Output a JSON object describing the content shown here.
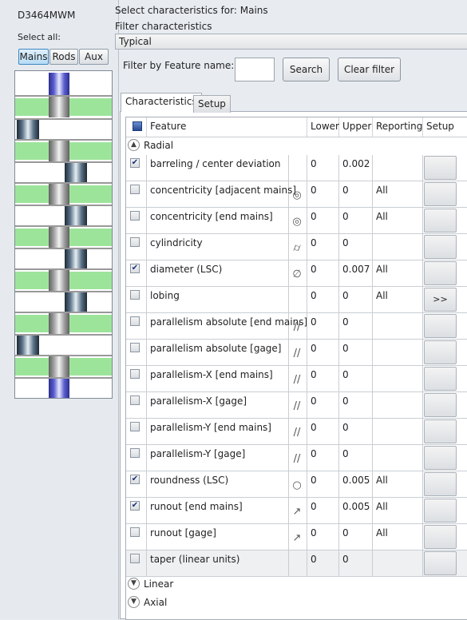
{
  "part_id": "D3464MWM",
  "select_all_label": "Select all:",
  "part_tabs": [
    {
      "label": "Mains",
      "active": true
    },
    {
      "label": "Rods",
      "active": false
    },
    {
      "label": "Aux",
      "active": false
    }
  ],
  "header": {
    "select_for": "Select characteristics for: Mains",
    "filter_chars": "Filter characteristics",
    "filter_selected": "Typical"
  },
  "filter": {
    "label": "Filter by Feature name:",
    "value": "",
    "search_label": "Search",
    "clear_label": "Clear filter"
  },
  "tabs": [
    {
      "label": "Characteristics",
      "active": true
    },
    {
      "label": "Setup",
      "active": false
    }
  ],
  "columns": [
    "Feature",
    "Lower",
    "Upper",
    "Reporting",
    "Setup"
  ],
  "groups": {
    "radial": "Radial",
    "linear": "Linear",
    "axial": "Axial"
  },
  "rows": [
    {
      "checked": true,
      "feature": "barreling  / center deviation",
      "symbol": "",
      "lower": "0",
      "upper": "0.002",
      "reporting": "",
      "setup": ""
    },
    {
      "checked": false,
      "feature": "concentricity [adjacent mains]",
      "symbol": "◎",
      "lower": "0",
      "upper": "0",
      "reporting": "All",
      "setup": ""
    },
    {
      "checked": false,
      "feature": "concentricity [end mains]",
      "symbol": "◎",
      "lower": "0",
      "upper": "0",
      "reporting": "All",
      "setup": ""
    },
    {
      "checked": false,
      "feature": "cylindricity",
      "symbol": "⌭",
      "lower": "0",
      "upper": "0",
      "reporting": "",
      "setup": ""
    },
    {
      "checked": true,
      "feature": "diameter (LSC)",
      "symbol": "∅",
      "lower": "0",
      "upper": "0.007",
      "reporting": "All",
      "setup": ""
    },
    {
      "checked": false,
      "feature": "lobing",
      "symbol": "",
      "lower": "0",
      "upper": "0",
      "reporting": "All",
      "setup": ">>"
    },
    {
      "checked": false,
      "feature": "parallelism absolute [end mains]",
      "symbol": "//",
      "lower": "0",
      "upper": "0",
      "reporting": "",
      "setup": ""
    },
    {
      "checked": false,
      "feature": "parallelism absolute [gage]",
      "symbol": "//",
      "lower": "0",
      "upper": "0",
      "reporting": "",
      "setup": ""
    },
    {
      "checked": false,
      "feature": "parallelism-X [end mains]",
      "symbol": "//",
      "lower": "0",
      "upper": "0",
      "reporting": "",
      "setup": ""
    },
    {
      "checked": false,
      "feature": "parallelism-X [gage]",
      "symbol": "//",
      "lower": "0",
      "upper": "0",
      "reporting": "",
      "setup": ""
    },
    {
      "checked": false,
      "feature": "parallelism-Y [end mains]",
      "symbol": "//",
      "lower": "0",
      "upper": "0",
      "reporting": "",
      "setup": ""
    },
    {
      "checked": false,
      "feature": "parallelism-Y [gage]",
      "symbol": "//",
      "lower": "0",
      "upper": "0",
      "reporting": "",
      "setup": ""
    },
    {
      "checked": true,
      "feature": "roundness (LSC)",
      "symbol": "○",
      "lower": "0",
      "upper": "0.005",
      "reporting": "All",
      "setup": ""
    },
    {
      "checked": true,
      "feature": "runout [end mains]",
      "symbol": "↗",
      "lower": "0",
      "upper": "0.005",
      "reporting": "All",
      "setup": ""
    },
    {
      "checked": false,
      "feature": "runout [gage]",
      "symbol": "↗",
      "lower": "0",
      "upper": "0",
      "reporting": "All",
      "setup": ""
    },
    {
      "checked": false,
      "feature": "taper (linear units)",
      "symbol": "",
      "lower": "0",
      "upper": "0",
      "reporting": "",
      "setup": ""
    }
  ],
  "colors": {
    "green_band": "#9de49b",
    "active_tab_blue": "#b7dcf5",
    "checkmark": "#1b2f78"
  }
}
